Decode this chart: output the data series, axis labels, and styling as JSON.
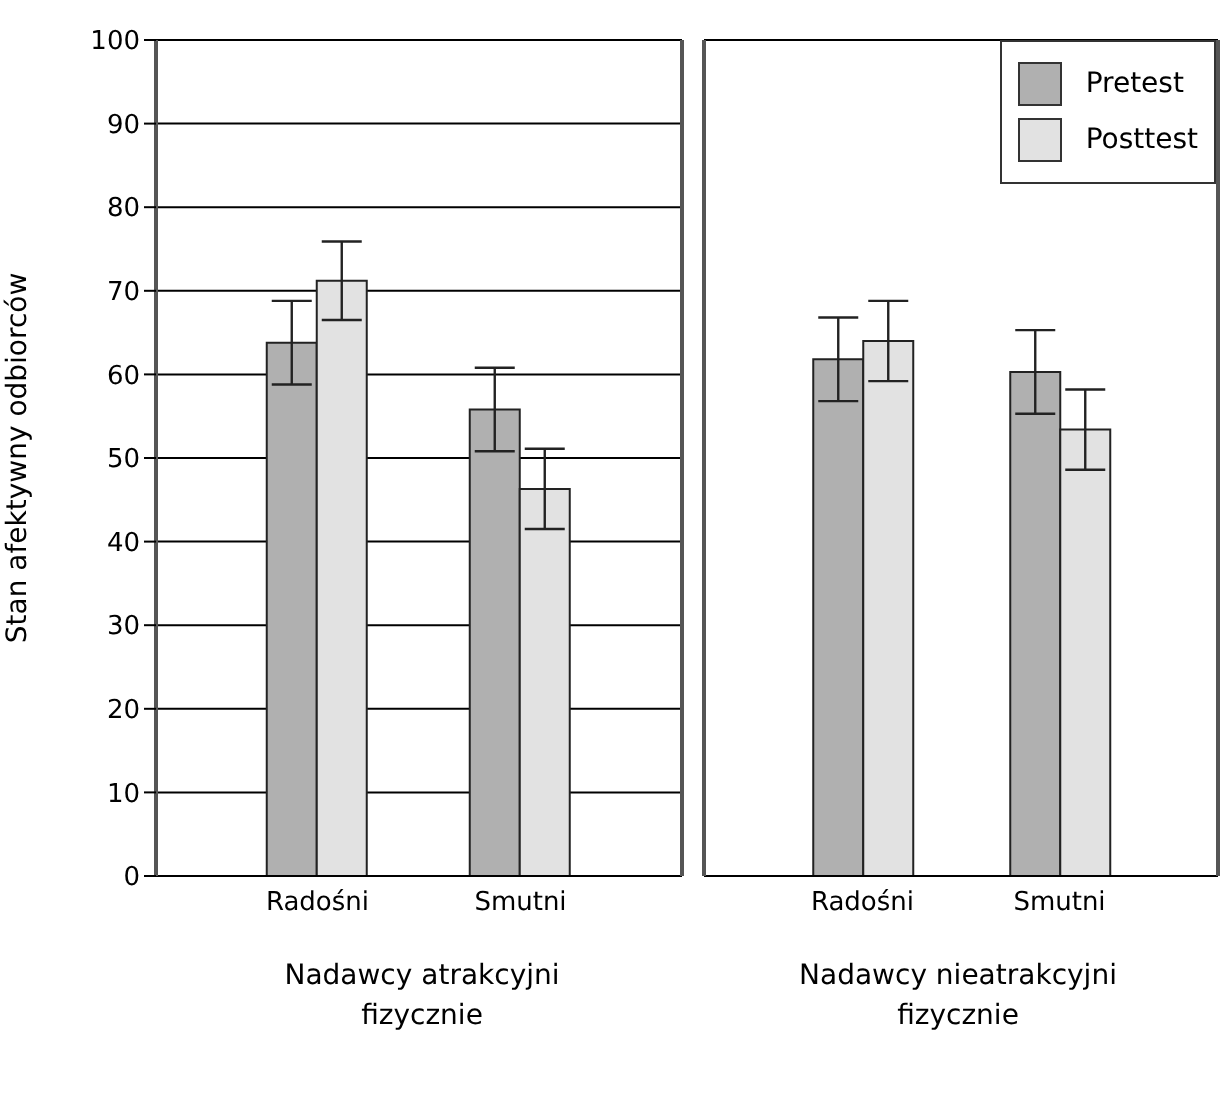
{
  "chart_data": [
    {
      "type": "bar",
      "xlabel": "Nadawcy atrakcyjni fizycznie",
      "ylabel": "Stan afektywny odbiorców",
      "categories": [
        "Radośni",
        "Smutni"
      ],
      "series": [
        {
          "color": "#b0b0b0",
          "values": [
            63.8,
            55.8
          ],
          "errors": [
            5,
            5
          ]
        },
        {
          "color": "#e2e2e2",
          "values": [
            71.2,
            46.3
          ],
          "errors": [
            4.7,
            4.8
          ]
        }
      ],
      "ylim": [
        0,
        100
      ],
      "yticks": [
        0,
        10,
        20,
        30,
        40,
        50,
        60,
        70,
        80,
        90,
        100
      ],
      "grid": "y",
      "legend": false
    },
    {
      "type": "bar",
      "xlabel": "Nadawcy nieatrakcyjni fizycznie",
      "categories": [
        "Radośni",
        "Smutni"
      ],
      "series": [
        {
          "name": "Pretest",
          "color": "#b0b0b0",
          "values": [
            61.8,
            60.3
          ],
          "errors": [
            5,
            5
          ]
        },
        {
          "name": "Posttest",
          "color": "#e2e2e2",
          "values": [
            64,
            53.4
          ],
          "errors": [
            4.8,
            4.8
          ]
        }
      ],
      "ylim": [
        0,
        100
      ],
      "yticks": [
        0,
        10,
        20,
        30,
        40,
        50,
        60,
        70,
        80,
        90,
        100
      ],
      "grid": "y",
      "legend": "top right",
      "tick_labels": "x"
    }
  ]
}
